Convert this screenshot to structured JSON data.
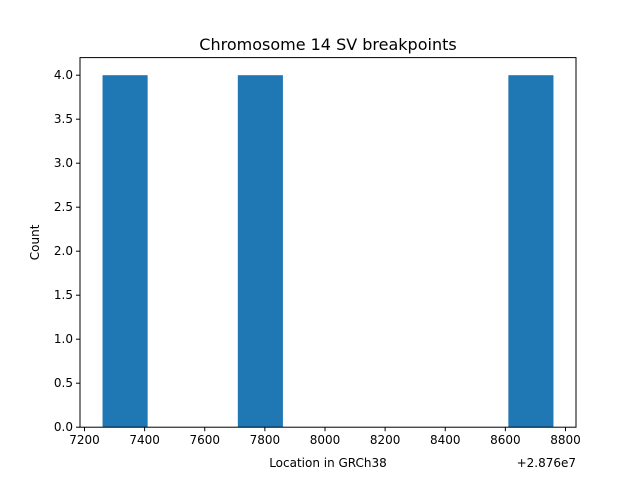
{
  "chart_data": {
    "type": "bar",
    "title": "Chromosome 14 SV breakpoints",
    "xlabel": "Location in GRCh38",
    "ylabel": "Count",
    "x_offset_label": "+2.876e7",
    "bar_color": "#1f77b4",
    "bins": [
      {
        "start": 7260,
        "end": 7410,
        "count": 4
      },
      {
        "start": 7410,
        "end": 7560,
        "count": 0
      },
      {
        "start": 7560,
        "end": 7710,
        "count": 0
      },
      {
        "start": 7710,
        "end": 7860,
        "count": 4
      },
      {
        "start": 7860,
        "end": 8010,
        "count": 0
      },
      {
        "start": 8010,
        "end": 8160,
        "count": 0
      },
      {
        "start": 8160,
        "end": 8310,
        "count": 0
      },
      {
        "start": 8310,
        "end": 8460,
        "count": 0
      },
      {
        "start": 8460,
        "end": 8610,
        "count": 0
      },
      {
        "start": 8610,
        "end": 8760,
        "count": 4
      }
    ],
    "xlim": [
      7185,
      8835
    ],
    "ylim": [
      0,
      4.2
    ],
    "xticks": [
      "7200",
      "7400",
      "7600",
      "7800",
      "8000",
      "8200",
      "8400",
      "8600",
      "8800"
    ],
    "yticks": [
      "0.0",
      "0.5",
      "1.0",
      "1.5",
      "2.0",
      "2.5",
      "3.0",
      "3.5",
      "4.0"
    ],
    "grid": false
  }
}
